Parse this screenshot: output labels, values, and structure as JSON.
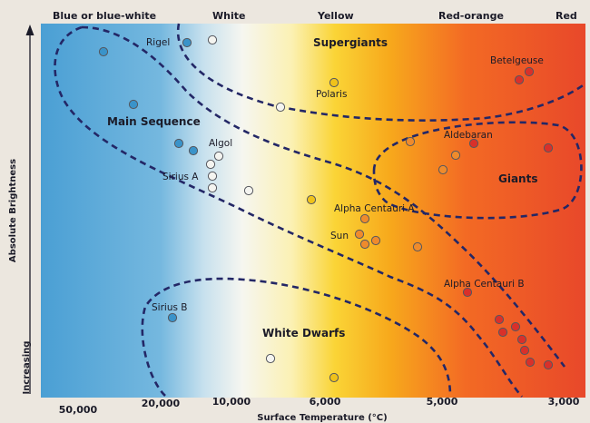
{
  "color_bands": {
    "blue": "Blue or blue-white",
    "white": "White",
    "yellow": "Yellow",
    "red_orange": "Red-orange",
    "red": "Red"
  },
  "axes": {
    "x_label": "Surface Temperature (°C)",
    "y_label_top": "Absolute Brightness",
    "y_label_bottom": "Increasing",
    "temperatures": [
      "50,000",
      "20,000",
      "10,000",
      "6,000",
      "5,000",
      "3,000"
    ]
  },
  "regions": {
    "supergiants": "Supergiants",
    "main_sequence": "Main Sequence",
    "giants": "Giants",
    "white_dwarfs": "White Dwarfs"
  },
  "star_names": {
    "rigel": "Rigel",
    "betelgeuse": "Betelgeuse",
    "polaris": "Polaris",
    "algol": "Algol",
    "sirius_a": "Sirius A",
    "aldebaran": "Aldebaran",
    "alpha_centauri_a": "Alpha Centauri A",
    "sun": "Sun",
    "alpha_centauri_b": "Alpha Centauri B",
    "sirius_b": "Sirius B"
  },
  "colors": {
    "blue_star": "#3a93c9",
    "white_star": "#f4f4f0",
    "yellow_star": "#f0c21a",
    "orange_star": "#ef8b2c",
    "red_star": "#d9302a",
    "boundary": "#232766"
  }
}
